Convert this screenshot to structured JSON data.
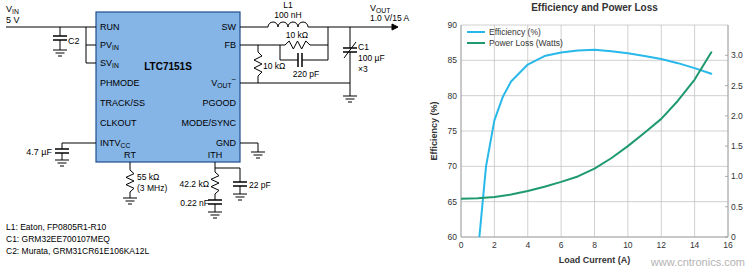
{
  "chart_data": {
    "type": "line",
    "title": "Efficiency and Power Loss",
    "xlabel": "Load Current (A)",
    "ylabel": "Efficiency (%)",
    "xlim": [
      0,
      16
    ],
    "xticks": [
      0,
      2,
      4,
      6,
      8,
      10,
      12,
      14,
      16
    ],
    "ylim": [
      60,
      90
    ],
    "yticks": [
      60,
      65,
      70,
      75,
      80,
      85,
      90
    ],
    "y2lim": [
      0,
      3.5
    ],
    "y2ticks": [
      0,
      0.5,
      {
        "value": 1,
        "label": "1.0"
      },
      1.5,
      {
        "value": 2,
        "label": "2.0"
      },
      2.5,
      {
        "value": 3,
        "label": "3.0"
      }
    ],
    "grid": true,
    "legend": "upper left",
    "series": [
      {
        "name": "Efficiency (%)",
        "color": "#29b8ea",
        "x": [
          1.1,
          1.5,
          2,
          2.5,
          3,
          4,
          5,
          6,
          7,
          8,
          9,
          10,
          11,
          12,
          13,
          14,
          15
        ],
        "values": [
          60,
          70,
          76.5,
          79.8,
          82,
          84.4,
          85.6,
          86.1,
          86.4,
          86.5,
          86.3,
          86,
          85.6,
          85.2,
          84.6,
          83.9,
          83.1
        ]
      },
      {
        "name": "Power Loss (Watts)",
        "color": "#1e9a6e",
        "axis": "y2",
        "x": [
          0,
          1,
          2,
          3,
          4,
          5,
          6,
          7,
          8,
          9,
          10,
          11,
          12,
          13,
          14,
          15
        ],
        "values": [
          0.63,
          0.64,
          0.66,
          0.7,
          0.76,
          0.83,
          0.91,
          1.0,
          1.13,
          1.3,
          1.5,
          1.72,
          1.95,
          2.25,
          2.6,
          3.05
        ]
      }
    ]
  },
  "schematic": {
    "ic": {
      "name": "LTC7151S",
      "left_pins": [
        {
          "text": "RUN"
        },
        {
          "text": "PV",
          "sub": "IN"
        },
        {
          "text": "SV",
          "sub": "IN"
        },
        {
          "text": "PHMODE"
        },
        {
          "text": "TRACK/SS"
        },
        {
          "text": "CLKOUT"
        },
        {
          "text": "INTV",
          "sub": "CC"
        }
      ],
      "right_pins": [
        {
          "text": "SW"
        },
        {
          "text": "FB"
        },
        {
          "text": "V",
          "sub": "OUT",
          "sup": "−"
        },
        {
          "text": "PGOOD"
        },
        {
          "text": "MODE/SYNC"
        },
        {
          "text": "GND"
        }
      ],
      "bottom_pins": [
        {
          "text": "RT"
        },
        {
          "text": "ITH"
        }
      ]
    },
    "input": {
      "label": {
        "text": "V",
        "sub": "IN"
      },
      "value": "5 V"
    },
    "output": {
      "label": {
        "text": "V",
        "sub": "OUT"
      },
      "value": "1.0 V/15 A"
    },
    "components": {
      "inductor": [
        "L1",
        "100 nH"
      ],
      "output_cap": [
        "C1",
        "100 µF",
        "×3"
      ],
      "input_cap": [
        "C2"
      ],
      "fb_top": [
        "10 kΩ"
      ],
      "fb_cap": [
        "220 pF"
      ],
      "fb_bottom": [
        "10 kΩ"
      ],
      "intvcc_cap": [
        "4.7 µF"
      ],
      "rt": [
        "55 kΩ",
        "(3 MHz)"
      ],
      "ith_r": [
        "42.2 kΩ"
      ],
      "ith_c": [
        "0.22 nF"
      ],
      "ith_cp": [
        "22 pF"
      ]
    },
    "notes": [
      "L1: Eaton, FP0805R1-R10",
      "C1: GRM32EE700107MEQ",
      "C2: Murata, GRM31CR61E106KA12L"
    ]
  },
  "watermark": "www.cntronics.com"
}
